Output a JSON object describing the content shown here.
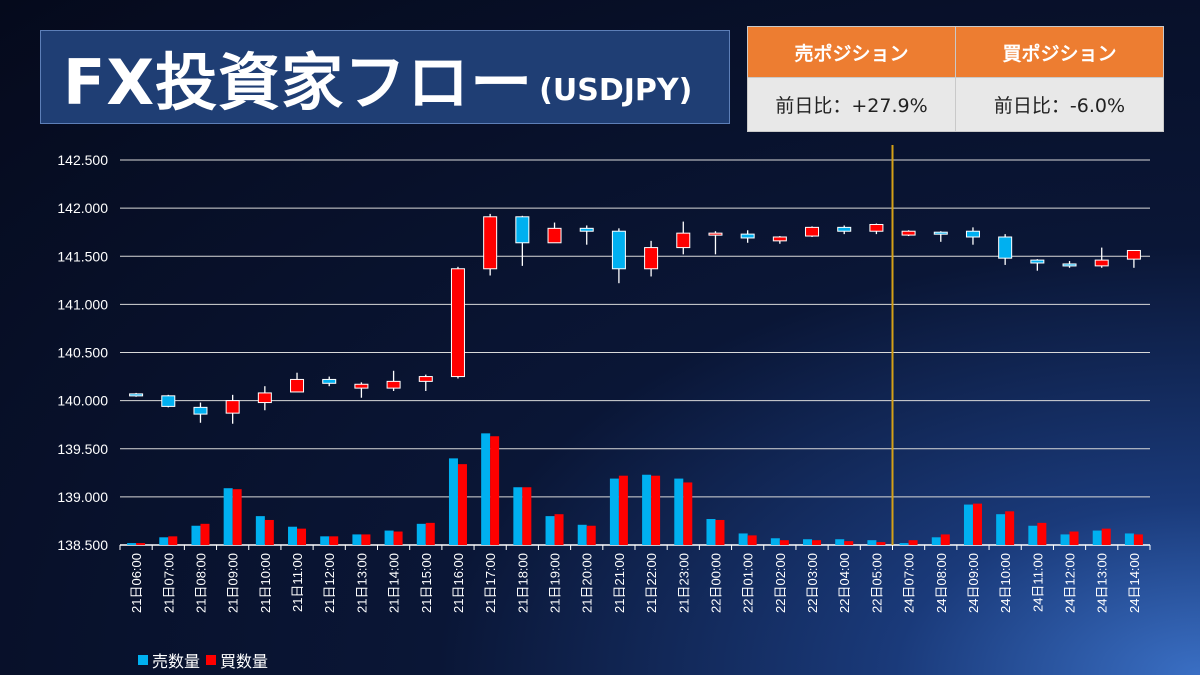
{
  "header": {
    "title": "FX投資家フロー",
    "subtitle": "(USDJPY)"
  },
  "positions": {
    "sell_label": "売ポジション",
    "buy_label": "買ポジション",
    "sell_value": "前日比：+27.9%",
    "buy_value": "前日比：-6.0%"
  },
  "colors": {
    "sell": "#00b0f0",
    "buy": "#ff0000",
    "divider": "#d4a017",
    "accent": "#ed7d31"
  },
  "chart_data": {
    "type": "candlestick",
    "ylim": [
      138.5,
      142.5
    ],
    "yticks": [
      "138.500",
      "139.000",
      "139.500",
      "140.000",
      "140.500",
      "141.000",
      "141.500",
      "142.000",
      "142.500"
    ],
    "ytick_values": [
      138.5,
      139.0,
      139.5,
      140.0,
      140.5,
      141.0,
      141.5,
      142.0,
      142.5
    ],
    "grid": true,
    "legend_position": "bottom-left",
    "legend": [
      "売数量",
      "買数量"
    ],
    "divider_after_category": "22日05:00",
    "categories": [
      "21日06:00",
      "21日07:00",
      "21日08:00",
      "21日09:00",
      "21日10:00",
      "21日11:00",
      "21日12:00",
      "21日13:00",
      "21日14:00",
      "21日15:00",
      "21日16:00",
      "21日17:00",
      "21日18:00",
      "21日19:00",
      "21日20:00",
      "21日21:00",
      "21日22:00",
      "21日23:00",
      "22日00:00",
      "22日01:00",
      "22日02:00",
      "22日03:00",
      "22日04:00",
      "22日05:00",
      "24日07:00",
      "24日08:00",
      "24日09:00",
      "24日10:00",
      "24日11:00",
      "24日12:00",
      "24日13:00",
      "24日14:00"
    ],
    "ohlc": [
      [
        140.07,
        140.08,
        140.04,
        140.05
      ],
      [
        140.05,
        140.06,
        139.93,
        139.94
      ],
      [
        139.93,
        139.98,
        139.77,
        139.86
      ],
      [
        139.87,
        140.06,
        139.76,
        140.0
      ],
      [
        139.98,
        140.15,
        139.9,
        140.08
      ],
      [
        140.09,
        140.29,
        140.09,
        140.22
      ],
      [
        140.22,
        140.25,
        140.15,
        140.18
      ],
      [
        140.13,
        140.19,
        140.03,
        140.17
      ],
      [
        140.13,
        140.31,
        140.1,
        140.2
      ],
      [
        140.2,
        140.27,
        140.1,
        140.25
      ],
      [
        140.25,
        141.39,
        140.23,
        141.37
      ],
      [
        141.37,
        141.94,
        141.3,
        141.91
      ],
      [
        141.91,
        141.92,
        141.4,
        141.64
      ],
      [
        141.64,
        141.85,
        141.64,
        141.79
      ],
      [
        141.79,
        141.82,
        141.62,
        141.76
      ],
      [
        141.76,
        141.79,
        141.22,
        141.37
      ],
      [
        141.37,
        141.66,
        141.29,
        141.59
      ],
      [
        141.59,
        141.86,
        141.52,
        141.74
      ],
      [
        141.74,
        141.76,
        141.52,
        141.74
      ],
      [
        141.73,
        141.77,
        141.64,
        141.69
      ],
      [
        141.66,
        141.71,
        141.63,
        141.7
      ],
      [
        141.71,
        141.81,
        141.7,
        141.8
      ],
      [
        141.8,
        141.82,
        141.73,
        141.76
      ],
      [
        141.76,
        141.84,
        141.73,
        141.83
      ],
      [
        141.72,
        141.77,
        141.71,
        141.76
      ],
      [
        141.75,
        141.76,
        141.65,
        141.74
      ],
      [
        141.76,
        141.8,
        141.62,
        141.7
      ],
      [
        141.7,
        141.73,
        141.41,
        141.48
      ],
      [
        141.46,
        141.47,
        141.35,
        141.43
      ],
      [
        141.42,
        141.45,
        141.38,
        141.41
      ],
      [
        141.4,
        141.59,
        141.38,
        141.46
      ],
      [
        141.47,
        141.56,
        141.38,
        141.56
      ]
    ],
    "series": [
      {
        "name": "売数量",
        "values": [
          138.52,
          138.58,
          138.7,
          139.09,
          138.8,
          138.69,
          138.59,
          138.61,
          138.65,
          138.72,
          139.4,
          139.66,
          139.1,
          138.8,
          138.71,
          139.19,
          139.23,
          139.19,
          138.77,
          138.62,
          138.57,
          138.56,
          138.56,
          138.55,
          138.52,
          138.58,
          138.92,
          138.82,
          138.7,
          138.61,
          138.65,
          138.62
        ]
      },
      {
        "name": "買数量",
        "values": [
          138.52,
          138.59,
          138.72,
          139.08,
          138.76,
          138.67,
          138.59,
          138.61,
          138.64,
          138.73,
          139.34,
          139.63,
          139.1,
          138.82,
          138.7,
          139.22,
          139.22,
          139.15,
          138.76,
          138.6,
          138.55,
          138.55,
          138.54,
          138.53,
          138.55,
          138.61,
          138.93,
          138.85,
          138.73,
          138.64,
          138.67,
          138.61
        ]
      }
    ]
  }
}
